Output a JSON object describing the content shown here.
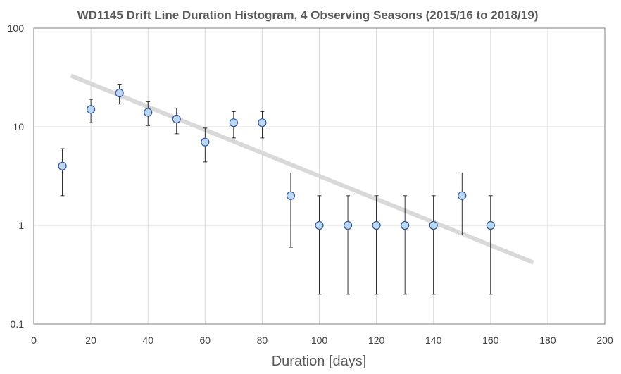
{
  "chart_data": {
    "type": "scatter",
    "title": "WD1145 Drift Line Duration Histogram, 4 Observing Seasons (2015/16 to 2018/19)",
    "xlabel": "Duration [days]",
    "ylabel": "",
    "xlim": [
      0,
      200
    ],
    "ylim": [
      0.1,
      100
    ],
    "yscale": "log",
    "grid": true,
    "x_ticks": [
      "0",
      "20",
      "40",
      "60",
      "80",
      "100",
      "120",
      "140",
      "160",
      "180",
      "200"
    ],
    "y_ticks": [
      "0.1",
      "1",
      "10",
      "100"
    ],
    "points": [
      {
        "x": 10,
        "y": 4,
        "err_low": 2,
        "err_high": 6
      },
      {
        "x": 20,
        "y": 15,
        "err_low": 11,
        "err_high": 19
      },
      {
        "x": 30,
        "y": 22,
        "err_low": 17,
        "err_high": 27
      },
      {
        "x": 40,
        "y": 14,
        "err_low": 10.3,
        "err_high": 18
      },
      {
        "x": 50,
        "y": 12,
        "err_low": 8.5,
        "err_high": 15.5
      },
      {
        "x": 60,
        "y": 7,
        "err_low": 4.4,
        "err_high": 9.7
      },
      {
        "x": 70,
        "y": 11,
        "err_low": 7.7,
        "err_high": 14.3
      },
      {
        "x": 80,
        "y": 11,
        "err_low": 7.7,
        "err_high": 14.3
      },
      {
        "x": 90,
        "y": 2,
        "err_low": 0.6,
        "err_high": 3.4
      },
      {
        "x": 100,
        "y": 1,
        "err_low": 0.2,
        "err_high": 2
      },
      {
        "x": 110,
        "y": 1,
        "err_low": 0.2,
        "err_high": 2
      },
      {
        "x": 120,
        "y": 1,
        "err_low": 0.2,
        "err_high": 2
      },
      {
        "x": 130,
        "y": 1,
        "err_low": 0.2,
        "err_high": 2
      },
      {
        "x": 140,
        "y": 1,
        "err_low": 0.2,
        "err_high": 2
      },
      {
        "x": 150,
        "y": 2,
        "err_low": 0.8,
        "err_high": 3.4
      },
      {
        "x": 160,
        "y": 1,
        "err_low": 0.2,
        "err_high": 2
      }
    ],
    "trendline": {
      "x": [
        13,
        175
      ],
      "y": [
        33,
        0.42
      ]
    },
    "colors": {
      "marker_fill": "#bdd7ee",
      "marker_stroke": "#2f55a4",
      "trendline": "#d9d9d9",
      "gridline": "#d9d9d9",
      "axis": "#7f7f7f",
      "errorbar": "#000000"
    }
  }
}
